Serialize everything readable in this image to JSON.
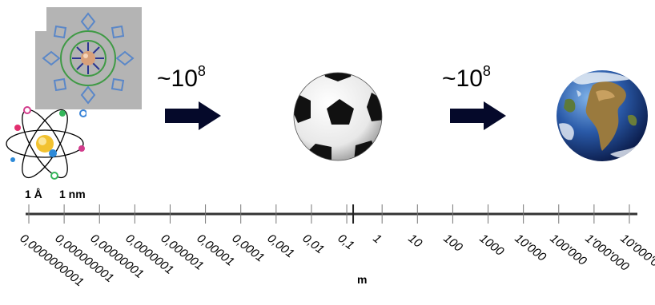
{
  "scale_factor_left": {
    "base": "~10",
    "exponent": "8"
  },
  "scale_factor_right": {
    "base": "~10",
    "exponent": "8"
  },
  "top_labels": [
    "1 Å",
    "1 nm"
  ],
  "unit_label": "m",
  "tick_labels": [
    "0,0000000001",
    "0,000000001",
    "0,00000001",
    "0,0000001",
    "0,000001",
    "0,00001",
    "0,0001",
    "0,001",
    "0,01",
    "0,1",
    "1",
    "10",
    "100",
    "1000",
    "10'000",
    "100'000",
    "1'000'000",
    "10'000'000"
  ],
  "icons": [
    "molecule-image",
    "atom-icon",
    "arrow-right-icon",
    "soccer-ball-icon",
    "earth-icon"
  ]
}
